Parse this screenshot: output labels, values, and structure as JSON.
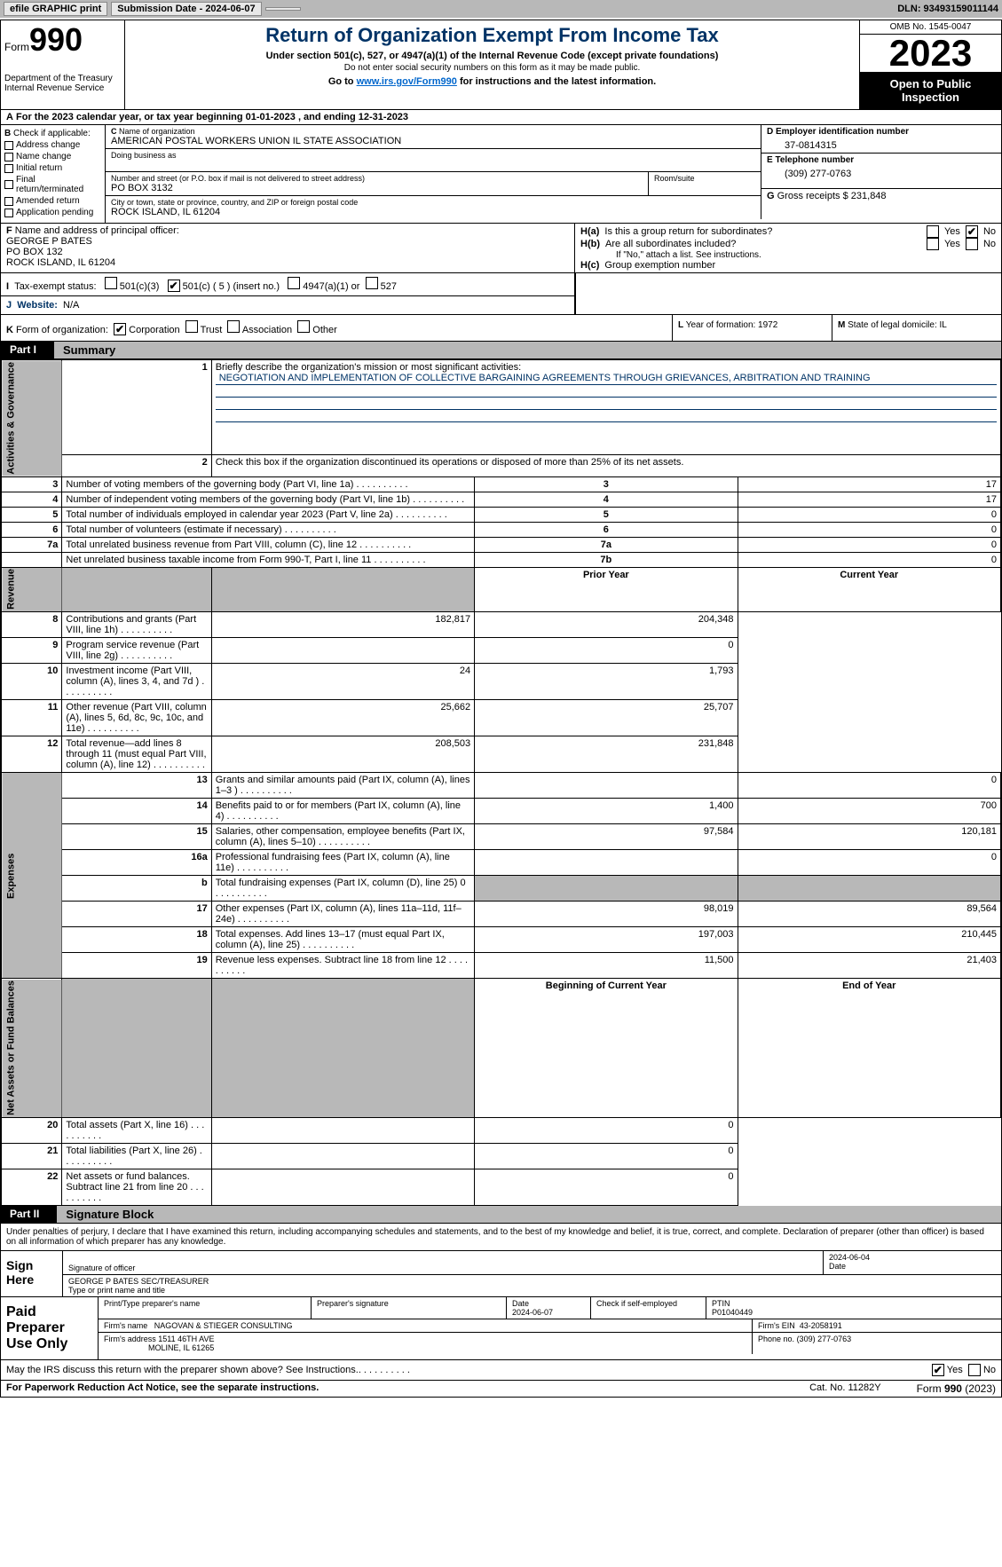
{
  "topbar": {
    "efile_label": "efile GRAPHIC print",
    "submission_label": "Submission Date - 2024-06-07",
    "dln_label": "DLN: 93493159011144"
  },
  "header": {
    "form_word": "Form",
    "form_num": "990",
    "dept": "Department of the Treasury\nInternal Revenue Service",
    "title": "Return of Organization Exempt From Income Tax",
    "subtitle": "Under section 501(c), 527, or 4947(a)(1) of the Internal Revenue Code (except private foundations)",
    "note": "Do not enter social security numbers on this form as it may be made public.",
    "goto_pre": "Go to ",
    "goto_link": "www.irs.gov/Form990",
    "goto_post": " for instructions and the latest information.",
    "omb": "OMB No. 1545-0047",
    "year": "2023",
    "open": "Open to Public Inspection"
  },
  "rowA": "For the 2023 calendar year, or tax year beginning 01-01-2023   , and ending 12-31-2023",
  "colB": {
    "header": "Check if applicable:",
    "items": [
      "Address change",
      "Name change",
      "Initial return",
      "Final return/terminated",
      "Amended return",
      "Application pending"
    ],
    "label_b": "B"
  },
  "colC": {
    "name_label": "Name of organization",
    "name_label_c": "C",
    "name": "AMERICAN POSTAL WORKERS UNION IL STATE ASSOCIATION",
    "dba_label": "Doing business as",
    "street_label": "Number and street (or P.O. box if mail is not delivered to street address)",
    "room_label": "Room/suite",
    "street": "PO BOX 3132",
    "city_label": "City or town, state or province, country, and ZIP or foreign postal code",
    "city": "ROCK ISLAND, IL  61204"
  },
  "colD": {
    "label": "D Employer identification number",
    "val": "37-0814315"
  },
  "colE": {
    "label": "E Telephone number",
    "val": "(309) 277-0763"
  },
  "colG": {
    "label_g": "G",
    "label": "Gross receipts $",
    "val": "231,848"
  },
  "officer": {
    "label_f": "F",
    "label": "  Name and address of principal officer:",
    "name": "GEORGE P BATES",
    "addr1": "PO BOX 132",
    "addr2": "ROCK ISLAND, IL  61204"
  },
  "groupH": {
    "ha_label": "H(a)",
    "ha_text": "Is this a group return for subordinates?",
    "ha_yes": "Yes",
    "ha_no": "No",
    "ha_checked": "✔",
    "hb_label": "H(b)",
    "hb_text": "Are all subordinates included?",
    "hb_yes": "Yes",
    "hb_no": "No",
    "hb_note": "If \"No,\" attach a list. See instructions.",
    "hc_label": "H(c)",
    "hc_text": "Group exemption number"
  },
  "status": {
    "label_i": "I",
    "label": "Tax-exempt status:",
    "opt1": "501(c)(3)",
    "opt2_checked": "✔",
    "opt2": "501(c) ( 5 ) (insert no.)",
    "opt3": "4947(a)(1) or",
    "opt4": "527"
  },
  "website": {
    "label_j": "J",
    "label": "Website:",
    "val": "N/A"
  },
  "rowK": {
    "label_k": "K",
    "label": "Form of organization:",
    "corp_checked": "✔",
    "opts": [
      "Corporation",
      "Trust",
      "Association",
      "Other"
    ],
    "l_label": "L",
    "l_text": "Year of formation: 1972",
    "m_label": "M",
    "m_text": "State of legal domicile: IL"
  },
  "part1": {
    "hdr": "Part I",
    "title": "Summary"
  },
  "summary": {
    "side_gov": "Activities & Governance",
    "side_rev": "Revenue",
    "side_exp": "Expenses",
    "side_net": "Net Assets or Fund Balances",
    "line1_label": "Briefly describe the organization's mission or most significant activities:",
    "line1_num": "1",
    "mission": "NEGOTIATION AND IMPLEMENTATION OF COLLECTIVE BARGAINING AGREEMENTS THROUGH GRIEVANCES, ARBITRATION AND TRAINING",
    "line2_num": "2",
    "line2": "Check this box      if the organization discontinued its operations or disposed of more than 25% of its net assets.",
    "rows_gov": [
      {
        "n": "3",
        "d": "Number of voting members of the governing body (Part VI, line 1a)",
        "b": "3",
        "v": "17"
      },
      {
        "n": "4",
        "d": "Number of independent voting members of the governing body (Part VI, line 1b)",
        "b": "4",
        "v": "17"
      },
      {
        "n": "5",
        "d": "Total number of individuals employed in calendar year 2023 (Part V, line 2a)",
        "b": "5",
        "v": "0"
      },
      {
        "n": "6",
        "d": "Total number of volunteers (estimate if necessary)",
        "b": "6",
        "v": "0"
      },
      {
        "n": "7a",
        "d": "Total unrelated business revenue from Part VIII, column (C), line 12",
        "b": "7a",
        "v": "0"
      },
      {
        "n": "",
        "d": "Net unrelated business taxable income from Form 990-T, Part I, line 11",
        "b": "7b",
        "v": "0"
      }
    ],
    "prior_hdr": "Prior Year",
    "curr_hdr": "Current Year",
    "rows_rev": [
      {
        "n": "8",
        "d": "Contributions and grants (Part VIII, line 1h)",
        "p": "182,817",
        "c": "204,348"
      },
      {
        "n": "9",
        "d": "Program service revenue (Part VIII, line 2g)",
        "p": "",
        "c": "0"
      },
      {
        "n": "10",
        "d": "Investment income (Part VIII, column (A), lines 3, 4, and 7d )",
        "p": "24",
        "c": "1,793"
      },
      {
        "n": "11",
        "d": "Other revenue (Part VIII, column (A), lines 5, 6d, 8c, 9c, 10c, and 11e)",
        "p": "25,662",
        "c": "25,707"
      },
      {
        "n": "12",
        "d": "Total revenue—add lines 8 through 11 (must equal Part VIII, column (A), line 12)",
        "p": "208,503",
        "c": "231,848"
      }
    ],
    "rows_exp": [
      {
        "n": "13",
        "d": "Grants and similar amounts paid (Part IX, column (A), lines 1–3 )",
        "p": "",
        "c": "0"
      },
      {
        "n": "14",
        "d": "Benefits paid to or for members (Part IX, column (A), line 4)",
        "p": "1,400",
        "c": "700"
      },
      {
        "n": "15",
        "d": "Salaries, other compensation, employee benefits (Part IX, column (A), lines 5–10)",
        "p": "97,584",
        "c": "120,181"
      },
      {
        "n": "16a",
        "d": "Professional fundraising fees (Part IX, column (A), line 11e)",
        "p": "",
        "c": "0"
      },
      {
        "n": "b",
        "d": "Total fundraising expenses (Part IX, column (D), line 25) 0",
        "p": "__SHADE__",
        "c": "__SHADE__"
      },
      {
        "n": "17",
        "d": "Other expenses (Part IX, column (A), lines 11a–11d, 11f–24e)",
        "p": "98,019",
        "c": "89,564"
      },
      {
        "n": "18",
        "d": "Total expenses. Add lines 13–17 (must equal Part IX, column (A), line 25)",
        "p": "197,003",
        "c": "210,445"
      },
      {
        "n": "19",
        "d": "Revenue less expenses. Subtract line 18 from line 12",
        "p": "11,500",
        "c": "21,403"
      }
    ],
    "beg_hdr": "Beginning of Current Year",
    "end_hdr": "End of Year",
    "rows_net": [
      {
        "n": "20",
        "d": "Total assets (Part X, line 16)",
        "p": "",
        "c": "0"
      },
      {
        "n": "21",
        "d": "Total liabilities (Part X, line 26)",
        "p": "",
        "c": "0"
      },
      {
        "n": "22",
        "d": "Net assets or fund balances. Subtract line 21 from line 20",
        "p": "",
        "c": "0"
      }
    ]
  },
  "part2": {
    "hdr": "Part II",
    "title": "Signature Block"
  },
  "sig_text": "Under penalties of perjury, I declare that I have examined this return, including accompanying schedules and statements, and to the best of my knowledge and belief, it is true, correct, and complete. Declaration of preparer (other than officer) is based on all information of which preparer has any knowledge.",
  "sign": {
    "here": "Sign Here",
    "sig_label": "Signature of officer",
    "date_label": "Date",
    "date_val": "2024-06-04",
    "name": "GEORGE P BATES SEC/TREASURER",
    "name_label": "Type or print name and title"
  },
  "paid": {
    "here": "Paid Preparer Use Only",
    "print_label": "Print/Type preparer's name",
    "sig_label": "Preparer's signature",
    "date_label": "Date",
    "date_val": "2024-06-07",
    "check_label": "Check        if self-employed",
    "ptin_label": "PTIN",
    "ptin": "P01040449",
    "firm_name_label": "Firm's name",
    "firm_name": "NAGOVAN & STIEGER CONSULTING",
    "firm_ein_label": "Firm's EIN",
    "firm_ein": "43-2058191",
    "firm_addr_label": "Firm's address",
    "firm_addr1": "1511 46TH AVE",
    "firm_addr2": "MOLINE, IL  61265",
    "phone_label": "Phone no.",
    "phone": "(309) 277-0763"
  },
  "discuss": {
    "text": "May the IRS discuss this return with the preparer shown above? See Instructions.",
    "yes": "Yes",
    "no": "No",
    "checked": "✔"
  },
  "footer": {
    "left": "For Paperwork Reduction Act Notice, see the separate instructions.",
    "mid": "Cat. No. 11282Y",
    "right_pre": "Form ",
    "right_form": "990",
    "right_post": " (2023)"
  }
}
